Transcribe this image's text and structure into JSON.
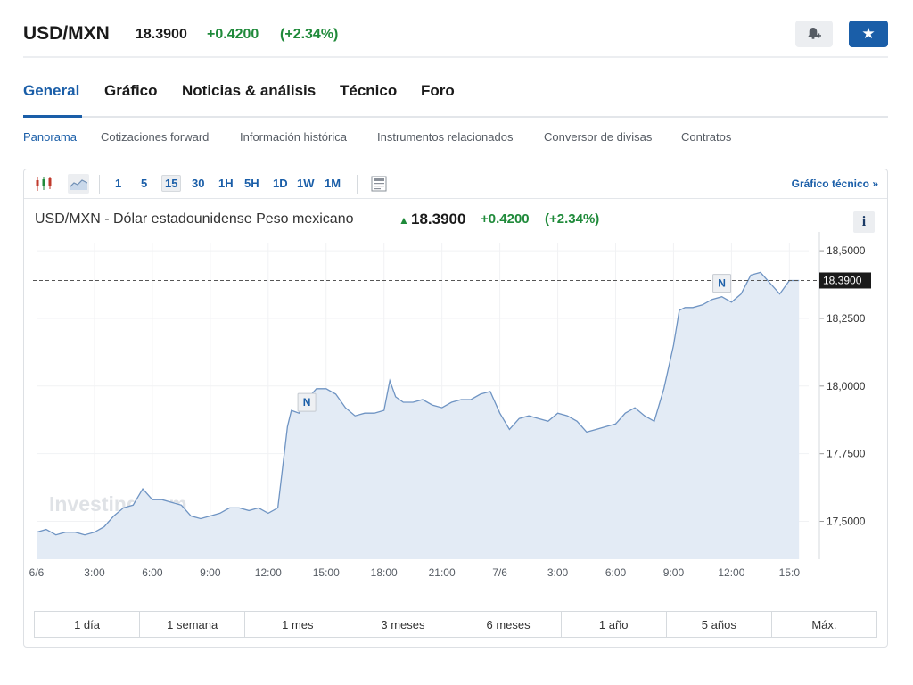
{
  "header": {
    "pair": "USD/MXN",
    "price": "18.3900",
    "change": "+0.4200",
    "change_pct": "(+2.34%)",
    "alert_icon": "bell-plus-icon",
    "star_icon": "star-icon"
  },
  "tabs": [
    {
      "label": "General",
      "active": true
    },
    {
      "label": "Gráfico",
      "active": false
    },
    {
      "label": "Noticias & análisis",
      "active": false
    },
    {
      "label": "Técnico",
      "active": false
    },
    {
      "label": "Foro",
      "active": false
    }
  ],
  "subnav": [
    {
      "label": "Panorama",
      "active": true
    },
    {
      "label": "Cotizaciones forward",
      "active": false
    },
    {
      "label": "Información histórica",
      "active": false
    },
    {
      "label": "Instrumentos relacionados",
      "active": false
    },
    {
      "label": "Conversor de divisas",
      "active": false
    },
    {
      "label": "Contratos",
      "active": false
    }
  ],
  "toolbar": {
    "intervals": [
      "1",
      "5",
      "15",
      "30",
      "1H",
      "5H",
      "1D",
      "1W",
      "1M"
    ],
    "active_interval": "15",
    "link": "Gráfico técnico »"
  },
  "chart_header": {
    "title": "USD/MXN - Dólar estadounidense Peso mexicano",
    "price": "18.3900",
    "change": "+0.4200",
    "change_pct": "(+2.34%)",
    "info_label": "i"
  },
  "chart_data": {
    "type": "area",
    "title": "USD/MXN - Dólar estadounidense Peso mexicano",
    "x_ticks": [
      "6/6",
      "3:00",
      "6:00",
      "9:00",
      "12:00",
      "15:00",
      "18:00",
      "21:00",
      "7/6",
      "3:00",
      "6:00",
      "9:00",
      "12:00",
      "15:0"
    ],
    "y_ticks": [
      "18,5000",
      "18,2500",
      "18,0000",
      "17,7500",
      "17,5000"
    ],
    "ylim": [
      17.36,
      18.53
    ],
    "x_range_hours": [
      0,
      40
    ],
    "current_value": 18.39,
    "current_label": "18,3900",
    "watermark": "Investing.com",
    "news_markers": [
      {
        "label": "N",
        "hours": 14.0,
        "value": 17.9
      },
      {
        "label": "N",
        "hours": 35.5,
        "value": 18.34
      }
    ],
    "series": [
      {
        "x_hours": [
          0,
          0.5,
          1.0,
          1.5,
          2.0,
          2.5,
          3.0,
          3.5,
          4.0,
          4.5,
          5.0,
          5.5,
          6.0,
          6.5,
          7.0,
          7.5,
          8.0,
          8.5,
          9.0,
          9.5,
          10.0,
          10.5,
          11.0,
          11.5,
          12.0,
          12.5,
          13.0,
          13.2,
          13.6,
          14.0,
          14.5,
          15.0,
          15.5,
          16.0,
          16.5,
          17.0,
          17.5,
          18.0,
          18.3,
          18.6,
          19.0,
          19.5,
          20.0,
          20.5,
          21.0,
          21.5,
          22.0,
          22.5,
          23.0,
          23.5,
          24.0,
          24.5,
          25.0,
          25.5,
          26.0,
          26.5,
          27.0,
          27.5,
          28.0,
          28.5,
          29.0,
          29.5,
          30.0,
          30.5,
          31.0,
          31.5,
          32.0,
          32.5,
          33.0,
          33.3,
          33.6,
          34.0,
          34.5,
          35.0,
          35.5,
          36.0,
          36.5,
          37.0,
          37.5,
          38.0,
          38.5,
          39.0,
          39.5
        ],
        "values": [
          17.46,
          17.47,
          17.45,
          17.46,
          17.46,
          17.45,
          17.46,
          17.48,
          17.52,
          17.55,
          17.56,
          17.62,
          17.58,
          17.58,
          17.57,
          17.56,
          17.52,
          17.51,
          17.52,
          17.53,
          17.55,
          17.55,
          17.54,
          17.55,
          17.53,
          17.55,
          17.85,
          17.91,
          17.9,
          17.95,
          17.99,
          17.99,
          17.97,
          17.92,
          17.89,
          17.9,
          17.9,
          17.91,
          18.02,
          17.96,
          17.94,
          17.94,
          17.95,
          17.93,
          17.92,
          17.94,
          17.95,
          17.95,
          17.97,
          17.98,
          17.9,
          17.84,
          17.88,
          17.89,
          17.88,
          17.87,
          17.9,
          17.89,
          17.87,
          17.83,
          17.84,
          17.85,
          17.86,
          17.9,
          17.92,
          17.89,
          17.87,
          17.99,
          18.15,
          18.28,
          18.29,
          18.29,
          18.3,
          18.32,
          18.33,
          18.31,
          18.34,
          18.41,
          18.42,
          18.38,
          18.34,
          18.39,
          18.39
        ]
      }
    ]
  },
  "ranges": [
    "1 día",
    "1 semana",
    "1 mes",
    "3 meses",
    "6 meses",
    "1 año",
    "5 años",
    "Máx."
  ]
}
